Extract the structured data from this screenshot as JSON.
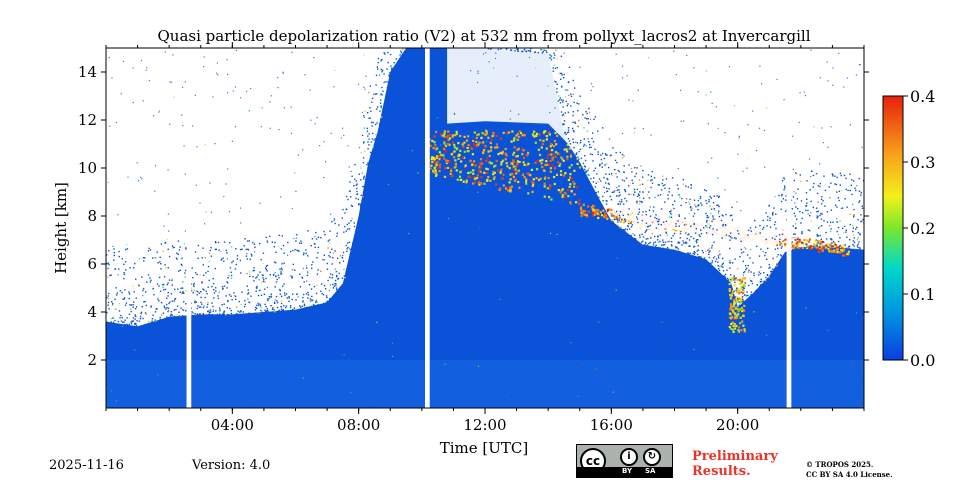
{
  "footer": {
    "date": "2025-11-16",
    "version": "Version: 4.0",
    "preliminary_line1": "Preliminary",
    "preliminary_line2": "Results.",
    "copyright_line1": "© TROPOS 2025.",
    "copyright_line2": "CC BY SA 4.0 License.",
    "license_badge": {
      "cc": "cc",
      "by": "BY",
      "sa": "SA"
    }
  },
  "colors": {
    "background": "#ffffff",
    "clear_sky": "#ffffff",
    "aerosol_base": "#0a52d8",
    "boundary_layer": "#1a6ae8",
    "preliminary": "#e8342a"
  },
  "chart_data": {
    "type": "heatmap",
    "title": "Quasi particle depolarization ratio (V2) at 532 nm from pollyxt_lacros2 at Invercargill",
    "xlabel": "Time [UTC]",
    "ylabel": "Height [km]",
    "xlim": [
      0,
      24
    ],
    "ylim": [
      0,
      15
    ],
    "x_ticks": [
      4,
      8,
      12,
      16,
      20
    ],
    "x_tick_labels": [
      "04:00",
      "08:00",
      "12:00",
      "16:00",
      "20:00"
    ],
    "x_minor_ticks_hours": 1,
    "y_ticks": [
      2,
      4,
      6,
      8,
      10,
      12,
      14
    ],
    "y_tick_labels": [
      "2",
      "4",
      "6",
      "8",
      "10",
      "12",
      "14"
    ],
    "colorbar": {
      "range": [
        0.0,
        0.4
      ],
      "ticks": [
        0.0,
        0.1,
        0.2,
        0.3,
        0.4
      ],
      "tick_labels": [
        "0.0",
        "0.1",
        "0.2",
        "0.3",
        "0.4"
      ],
      "colormap": "jet"
    },
    "data_gaps_hours": [
      [
        2.55,
        2.7
      ],
      [
        10.1,
        10.25
      ],
      [
        21.55,
        21.7
      ]
    ],
    "signal_top_km": [
      [
        0,
        3.6
      ],
      [
        1,
        3.4
      ],
      [
        2,
        3.8
      ],
      [
        3,
        3.9
      ],
      [
        4,
        3.9
      ],
      [
        5,
        4.0
      ],
      [
        6,
        4.1
      ],
      [
        7,
        4.4
      ],
      [
        7.5,
        5.2
      ],
      [
        8,
        8.0
      ],
      [
        8.3,
        10.2
      ],
      [
        8.6,
        11.5
      ],
      [
        9.0,
        14.0
      ],
      [
        9.5,
        15.0
      ],
      [
        10.1,
        15.0
      ],
      [
        12.0,
        15.0
      ],
      [
        14.0,
        14.8
      ],
      [
        14.5,
        11.5
      ],
      [
        15.5,
        9.0
      ],
      [
        16.0,
        7.8
      ],
      [
        17.0,
        6.8
      ],
      [
        18.0,
        6.6
      ],
      [
        19.0,
        6.2
      ],
      [
        19.8,
        5.2
      ],
      [
        20.0,
        4.2
      ],
      [
        20.5,
        4.8
      ],
      [
        21.0,
        5.5
      ],
      [
        21.5,
        6.5
      ],
      [
        22.0,
        6.7
      ],
      [
        23.0,
        6.7
      ],
      [
        24.0,
        6.6
      ]
    ],
    "background_noise_region": {
      "x": [
        0,
        24
      ],
      "y_top_km": 15,
      "note": "sparse pixels above signal top"
    },
    "cloud_features": [
      {
        "label": "cirrus",
        "x_range": [
          10.1,
          15.0
        ],
        "depol_range": [
          0.2,
          0.4
        ],
        "top_km": 11.6,
        "base_km_start": 9.8,
        "base_km_end": 8.4
      },
      {
        "label": "cloud base layer",
        "x_range": [
          15.0,
          23.5
        ],
        "depol_range": [
          0.25,
          0.4
        ],
        "height_start_km": 8.3,
        "height_end_km": 6.6
      },
      {
        "label": "precipitation streak",
        "x_range": [
          19.7,
          20.2
        ],
        "depol_range": [
          0.2,
          0.35
        ],
        "height_range_km": [
          3.2,
          5.5
        ]
      }
    ],
    "aerosol_layer": {
      "depol_value": 0.02,
      "boundary_layer_top_km": 2.0
    }
  }
}
